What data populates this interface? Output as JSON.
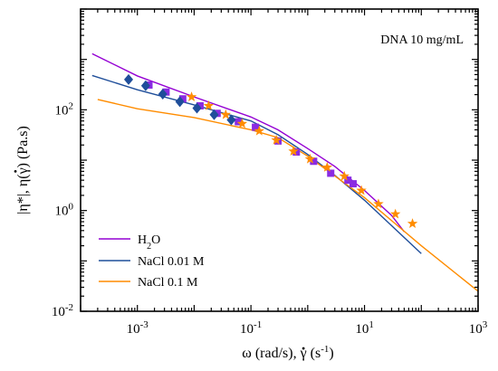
{
  "chart_data": {
    "type": "line",
    "annotation": "DNA 10 mg/mL",
    "xlabel": {
      "parts": [
        "ω (rad/s), ",
        "γ",
        " (s",
        "-1",
        ")"
      ]
    },
    "ylabel": {
      "parts": [
        "|η*|, η(",
        "γ",
        ") (Pa.s)"
      ]
    },
    "xscale": "log",
    "yscale": "log",
    "xlim": [
      0.0001,
      1000
    ],
    "ylim": [
      0.01,
      10000
    ],
    "xticks": [
      {
        "value": 0.001,
        "base": "10",
        "exp": "-3"
      },
      {
        "value": 0.1,
        "base": "10",
        "exp": "-1"
      },
      {
        "value": 10,
        "base": "10",
        "exp": "1"
      },
      {
        "value": 1000,
        "base": "10",
        "exp": "3"
      }
    ],
    "yticks": [
      {
        "value": 0.01,
        "base": "10",
        "exp": "-2"
      },
      {
        "value": 1,
        "base": "10",
        "exp": "0"
      },
      {
        "value": 100,
        "base": "10",
        "exp": "2"
      }
    ],
    "legend_position": "bottom-left",
    "legend": [
      {
        "name_parts": [
          "H",
          "2",
          "O"
        ],
        "color": "#9400D3"
      },
      {
        "name_parts": [
          "NaCl 0.01 M"
        ],
        "color": "#1F4E9A"
      },
      {
        "name_parts": [
          "NaCl 0.1 M"
        ],
        "color": "#FF8C00"
      }
    ],
    "series": [
      {
        "id": "h2o-steady-line",
        "color": "#9400D3",
        "style": "line",
        "points": [
          [
            0.00016,
            1300
          ],
          [
            0.001,
            470
          ],
          [
            0.01,
            180
          ],
          [
            0.1,
            72
          ],
          [
            0.3,
            40
          ],
          [
            1,
            17
          ],
          [
            3,
            7.5
          ],
          [
            10,
            2.5
          ],
          [
            30,
            0.8
          ],
          [
            50,
            0.38
          ]
        ]
      },
      {
        "id": "nacl001-steady-line",
        "color": "#1F4E9A",
        "style": "line",
        "points": [
          [
            0.00016,
            480
          ],
          [
            0.001,
            250
          ],
          [
            0.01,
            125
          ],
          [
            0.1,
            60
          ],
          [
            0.3,
            32
          ],
          [
            1,
            13
          ],
          [
            3,
            5
          ],
          [
            10,
            1.6
          ],
          [
            100,
            0.14
          ]
        ]
      },
      {
        "id": "nacl01-steady-line",
        "color": "#FF8C00",
        "style": "line",
        "points": [
          [
            0.0002,
            160
          ],
          [
            0.001,
            105
          ],
          [
            0.01,
            70
          ],
          [
            0.1,
            40
          ],
          [
            0.3,
            28
          ],
          [
            1,
            12
          ],
          [
            10,
            1.8
          ],
          [
            100,
            0.2
          ],
          [
            1000,
            0.025
          ]
        ]
      },
      {
        "id": "h2o-oscillatory-squares",
        "color": "#8A2BE2",
        "style": "marker",
        "marker": "square",
        "points": [
          [
            0.0016,
            310
          ],
          [
            0.0032,
            225
          ],
          [
            0.0063,
            165
          ],
          [
            0.0127,
            120
          ],
          [
            0.0254,
            85
          ],
          [
            0.06,
            58
          ],
          [
            0.12,
            45
          ],
          [
            0.3,
            24
          ],
          [
            0.63,
            14.5
          ],
          [
            1.27,
            9.5
          ],
          [
            2.54,
            5.5
          ],
          [
            5.1,
            4
          ],
          [
            6.3,
            3.4
          ]
        ]
      },
      {
        "id": "nacl001-oscillatory-diamonds",
        "color": "#1F4E9A",
        "style": "marker",
        "marker": "diamond",
        "points": [
          [
            0.0007,
            400
          ],
          [
            0.0014,
            300
          ],
          [
            0.0028,
            205
          ],
          [
            0.0056,
            145
          ],
          [
            0.0112,
            108
          ],
          [
            0.0225,
            80
          ],
          [
            0.045,
            63
          ]
        ]
      },
      {
        "id": "nacl01-oscillatory-stars",
        "color": "#FF8C00",
        "style": "marker",
        "marker": "star",
        "points": [
          [
            0.009,
            180
          ],
          [
            0.018,
            120
          ],
          [
            0.036,
            80
          ],
          [
            0.07,
            53
          ],
          [
            0.14,
            38
          ],
          [
            0.28,
            25
          ],
          [
            0.56,
            15
          ],
          [
            1.1,
            10.5
          ],
          [
            2.2,
            7.2
          ],
          [
            4.4,
            4.8
          ],
          [
            8.8,
            2.5
          ],
          [
            17.6,
            1.35
          ],
          [
            35,
            0.85
          ],
          [
            70,
            0.55
          ]
        ]
      }
    ]
  }
}
